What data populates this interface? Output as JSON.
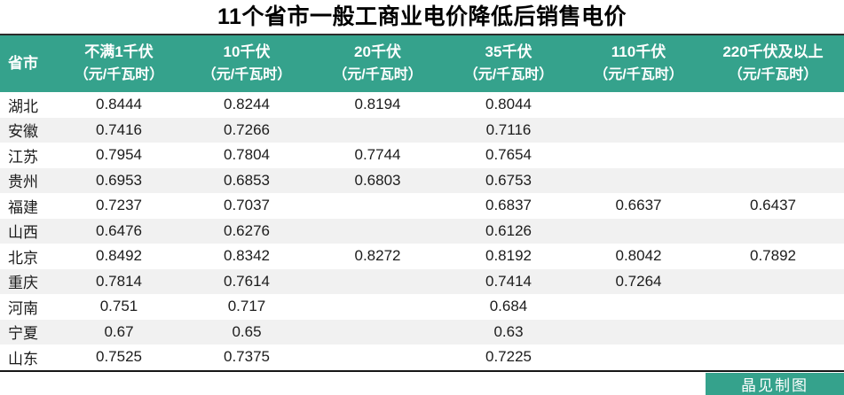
{
  "title": "11个省市一般工商业电价降低后销售电价",
  "badge": {
    "label": "晶见制图"
  },
  "colors": {
    "header_bg": "#35a28c",
    "header_text": "#ffffff",
    "row_alt_bg": "#f1f1f1",
    "body_text": "#1c1c1c",
    "border": "#161616",
    "badge_bg": "#35a28c"
  },
  "chart_data": {
    "type": "table",
    "title": "11个省市一般工商业电价降低后销售电价",
    "unit": "元/千瓦时",
    "columns": [
      {
        "label": "省市",
        "unit": ""
      },
      {
        "label": "不满1千伏",
        "unit": "（元/千瓦时）"
      },
      {
        "label": "10千伏",
        "unit": "（元/千瓦时）"
      },
      {
        "label": "20千伏",
        "unit": "（元/千瓦时）"
      },
      {
        "label": "35千伏",
        "unit": "（元/千瓦时）"
      },
      {
        "label": "110千伏",
        "unit": "（元/千瓦时）"
      },
      {
        "label": "220千伏及以上",
        "unit": "（元/千瓦时）"
      }
    ],
    "rows": [
      {
        "province": "湖北",
        "values": [
          "0.8444",
          "0.8244",
          "0.8194",
          "0.8044",
          "",
          ""
        ]
      },
      {
        "province": "安徽",
        "values": [
          "0.7416",
          "0.7266",
          "",
          "0.7116",
          "",
          ""
        ]
      },
      {
        "province": "江苏",
        "values": [
          "0.7954",
          "0.7804",
          "0.7744",
          "0.7654",
          "",
          ""
        ]
      },
      {
        "province": "贵州",
        "values": [
          "0.6953",
          "0.6853",
          "0.6803",
          "0.6753",
          "",
          ""
        ]
      },
      {
        "province": "福建",
        "values": [
          "0.7237",
          "0.7037",
          "",
          "0.6837",
          "0.6637",
          "0.6437"
        ]
      },
      {
        "province": "山西",
        "values": [
          "0.6476",
          "0.6276",
          "",
          "0.6126",
          "",
          ""
        ]
      },
      {
        "province": "北京",
        "values": [
          "0.8492",
          "0.8342",
          "0.8272",
          "0.8192",
          "0.8042",
          "0.7892"
        ]
      },
      {
        "province": "重庆",
        "values": [
          "0.7814",
          "0.7614",
          "",
          "0.7414",
          "0.7264",
          ""
        ]
      },
      {
        "province": "河南",
        "values": [
          "0.751",
          "0.717",
          "",
          "0.684",
          "",
          ""
        ]
      },
      {
        "province": "宁夏",
        "values": [
          "0.67",
          "0.65",
          "",
          "0.63",
          "",
          ""
        ]
      },
      {
        "province": "山东",
        "values": [
          "0.7525",
          "0.7375",
          "",
          "0.7225",
          "",
          ""
        ]
      }
    ]
  }
}
